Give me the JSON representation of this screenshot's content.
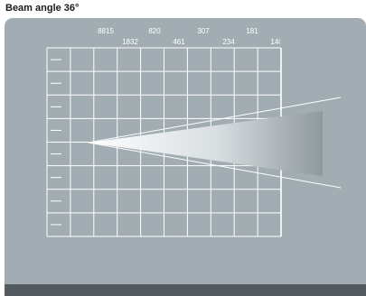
{
  "title": "Beam angle 36°",
  "beam_angle_deg": 36,
  "lux_row_top": [
    "8815",
    "820",
    "307",
    "181"
  ],
  "lux_row_bottom": [
    "1832",
    "461",
    "234",
    "140"
  ],
  "colors": {
    "panel": "#a2adb3",
    "bottom_band": "#545b60",
    "grid_lines": "#ffffff",
    "beam_light": "#ffffff",
    "beam_dark": "#8e989e"
  }
}
